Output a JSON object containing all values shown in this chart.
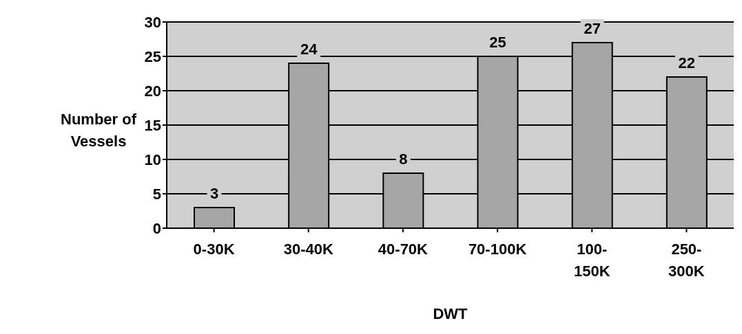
{
  "chart_data": {
    "type": "bar",
    "xlabel": "DWT",
    "ylabel": "Number of Vessels",
    "categories": [
      "0-30K",
      "30-40K",
      "40-70K",
      "70-100K",
      "100-150K",
      "250-300K"
    ],
    "values": [
      3,
      24,
      8,
      25,
      27,
      22
    ],
    "color": "#a6a6a6",
    "ylim": [
      0,
      30
    ],
    "yticks": [
      0,
      5,
      10,
      15,
      20,
      25,
      30
    ],
    "grid": "y",
    "data_labels": true
  }
}
